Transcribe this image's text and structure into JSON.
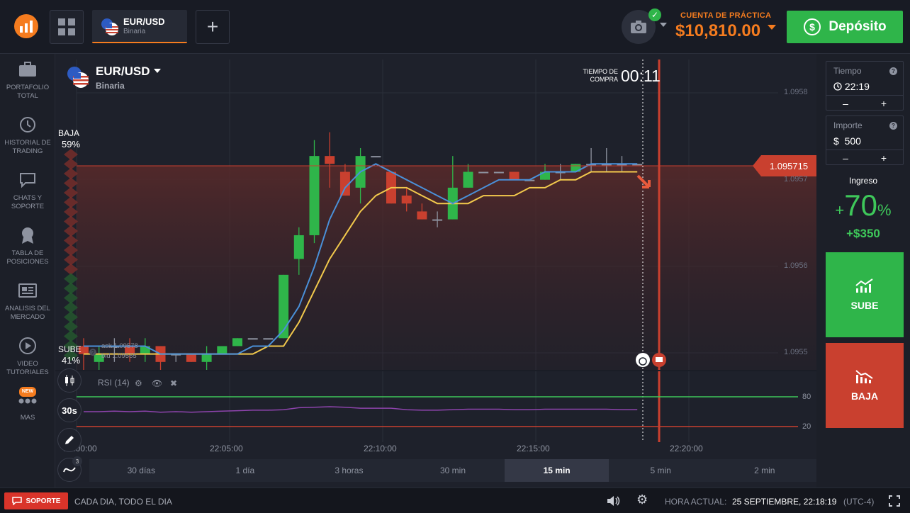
{
  "header": {
    "asset_tab": {
      "name": "EUR/USD",
      "type": "Binaria"
    },
    "account_label": "CUENTA DE PRÁCTICA",
    "balance": "$10,810.00",
    "deposit_label": "Depósito"
  },
  "sidebar": {
    "items": [
      {
        "label1": "PORTAFOLIO",
        "label2": "TOTAL",
        "icon": "briefcase-icon"
      },
      {
        "label1": "HISTORIAL DE",
        "label2": "TRADING",
        "icon": "history-icon"
      },
      {
        "label1": "CHATS Y",
        "label2": "SOPORTE",
        "icon": "chat-icon"
      },
      {
        "label1": "TABLA DE",
        "label2": "POSICIONES",
        "icon": "medal-icon"
      },
      {
        "label1": "ANALISIS DEL",
        "label2": "MERCADO",
        "icon": "news-icon"
      },
      {
        "label1": "VIDEO",
        "label2": "TUTORIALES",
        "icon": "play-icon"
      },
      {
        "label1": "MAS",
        "label2": "",
        "icon": "more-icon",
        "badge": "NEW"
      }
    ]
  },
  "chart": {
    "asset_name": "EUR/USD",
    "asset_type": "Binaria",
    "buy_time_label_1": "TIEMPO DE",
    "buy_time_label_2": "COMPRA",
    "buy_time": "00:11",
    "low_label": "BAJA",
    "low_pct": "59%",
    "high_label": "SUBE",
    "high_pct": "41%",
    "ask": "ask 1.09578",
    "bid": "bid 1.09565",
    "current_price": "1.095715",
    "indicator_label": "RSI (14)",
    "rsi_levels": [
      "80",
      "20"
    ],
    "timeframe_button": "30s",
    "tools_count": "3",
    "periods": [
      "30 días",
      "1 día",
      "3 horas",
      "30 min",
      "15 min",
      "5 min",
      "2 min"
    ],
    "active_period": "15 min",
    "colors": {
      "up": "#2fb54a",
      "down": "#c9402f",
      "ma_fast": "#4a90d9",
      "ma_slow": "#f2c94c",
      "rsi": "#8e44ad"
    }
  },
  "chart_data": {
    "type": "candlestick",
    "x_ticks": [
      "22:00:00",
      "22:05:00",
      "22:10:00",
      "22:15:00",
      "22:20:00"
    ],
    "y_ticks": [
      "1.0958",
      "1.0957",
      "1.0956",
      "1.0955"
    ],
    "ylim": [
      1.09546,
      1.09585
    ],
    "current_price": 1.095715,
    "candles": [
      {
        "o": 1.09549,
        "c": 1.09548,
        "h": 1.0955,
        "l": 1.09546
      },
      {
        "o": 1.09547,
        "c": 1.09548,
        "h": 1.09549,
        "l": 1.09546
      },
      {
        "o": 1.09549,
        "c": 1.09549,
        "h": 1.0955,
        "l": 1.09547
      },
      {
        "o": 1.09549,
        "c": 1.09548,
        "h": 1.0955,
        "l": 1.09547
      },
      {
        "o": 1.09548,
        "c": 1.09549,
        "h": 1.0955,
        "l": 1.09547
      },
      {
        "o": 1.09549,
        "c": 1.09547,
        "h": 1.09549,
        "l": 1.09546
      },
      {
        "o": 1.09548,
        "c": 1.09548,
        "h": 1.09548,
        "l": 1.09547
      },
      {
        "o": 1.09548,
        "c": 1.09547,
        "h": 1.09548,
        "l": 1.09547
      },
      {
        "o": 1.09547,
        "c": 1.09548,
        "h": 1.09549,
        "l": 1.09546
      },
      {
        "o": 1.09548,
        "c": 1.09549,
        "h": 1.09549,
        "l": 1.09548
      },
      {
        "o": 1.09549,
        "c": 1.0955,
        "h": 1.0955,
        "l": 1.09549
      },
      {
        "o": 1.0955,
        "c": 1.0955,
        "h": 1.0955,
        "l": 1.0955
      },
      {
        "o": 1.0955,
        "c": 1.0955,
        "h": 1.0955,
        "l": 1.0955
      },
      {
        "o": 1.0955,
        "c": 1.09558,
        "h": 1.09558,
        "l": 1.0955
      },
      {
        "o": 1.0956,
        "c": 1.09563,
        "h": 1.09564,
        "l": 1.09558
      },
      {
        "o": 1.09563,
        "c": 1.09573,
        "h": 1.09575,
        "l": 1.09562
      },
      {
        "o": 1.09573,
        "c": 1.09572,
        "h": 1.09576,
        "l": 1.09569
      },
      {
        "o": 1.09571,
        "c": 1.09568,
        "h": 1.09572,
        "l": 1.09568
      },
      {
        "o": 1.09569,
        "c": 1.09573,
        "h": 1.09574,
        "l": 1.09567
      },
      {
        "o": 1.09573,
        "c": 1.09573,
        "h": 1.09573,
        "l": 1.09573
      },
      {
        "o": 1.09571,
        "c": 1.09567,
        "h": 1.09571,
        "l": 1.09567
      },
      {
        "o": 1.09568,
        "c": 1.09567,
        "h": 1.09569,
        "l": 1.09566
      },
      {
        "o": 1.09566,
        "c": 1.09565,
        "h": 1.09567,
        "l": 1.09565
      },
      {
        "o": 1.09565,
        "c": 1.09565,
        "h": 1.09566,
        "l": 1.09564
      },
      {
        "o": 1.09565,
        "c": 1.09569,
        "h": 1.09573,
        "l": 1.09565
      },
      {
        "o": 1.09569,
        "c": 1.09571,
        "h": 1.09572,
        "l": 1.09569
      },
      {
        "o": 1.09571,
        "c": 1.09571,
        "h": 1.09571,
        "l": 1.09571
      },
      {
        "o": 1.09571,
        "c": 1.09571,
        "h": 1.09571,
        "l": 1.09571
      },
      {
        "o": 1.09571,
        "c": 1.0957,
        "h": 1.09571,
        "l": 1.0957
      },
      {
        "o": 1.0957,
        "c": 1.0957,
        "h": 1.0957,
        "l": 1.0957
      },
      {
        "o": 1.0957,
        "c": 1.09571,
        "h": 1.09572,
        "l": 1.0957
      },
      {
        "o": 1.09571,
        "c": 1.09571,
        "h": 1.09572,
        "l": 1.0957
      },
      {
        "o": 1.09571,
        "c": 1.09572,
        "h": 1.09572,
        "l": 1.09571
      },
      {
        "o": 1.09572,
        "c": 1.09572,
        "h": 1.09574,
        "l": 1.09571
      },
      {
        "o": 1.09572,
        "c": 1.09572,
        "h": 1.09574,
        "l": 1.09571
      },
      {
        "o": 1.09572,
        "c": 1.09572,
        "h": 1.09573,
        "l": 1.09571
      },
      {
        "o": 1.09572,
        "c": 1.09572,
        "h": 1.09572,
        "l": 1.09572
      }
    ],
    "ma_fast": [
      1.09549,
      1.09549,
      1.09549,
      1.09549,
      1.09549,
      1.09548,
      1.09548,
      1.09548,
      1.09548,
      1.09548,
      1.09548,
      1.09549,
      1.09549,
      1.09551,
      1.09554,
      1.09559,
      1.09565,
      1.09569,
      1.09571,
      1.09572,
      1.09571,
      1.0957,
      1.09569,
      1.09568,
      1.09567,
      1.09568,
      1.09569,
      1.0957,
      1.0957,
      1.0957,
      1.09571,
      1.09571,
      1.09571,
      1.09572,
      1.09572,
      1.09572,
      1.09572
    ],
    "ma_slow": [
      1.09548,
      1.09548,
      1.09548,
      1.09548,
      1.09548,
      1.09548,
      1.09548,
      1.09548,
      1.09548,
      1.09548,
      1.09548,
      1.09548,
      1.09549,
      1.09549,
      1.09552,
      1.09556,
      1.0956,
      1.09563,
      1.09566,
      1.09568,
      1.09569,
      1.09569,
      1.09568,
      1.09567,
      1.09567,
      1.09567,
      1.09568,
      1.09568,
      1.09568,
      1.09569,
      1.09569,
      1.0957,
      1.0957,
      1.09571,
      1.09571,
      1.09571,
      1.09571
    ],
    "rsi": [
      50,
      50,
      51,
      50,
      51,
      49,
      50,
      49,
      50,
      51,
      52,
      53,
      53,
      54,
      58,
      59,
      60,
      59,
      57,
      57,
      57,
      54,
      53,
      53,
      54,
      55,
      55,
      55,
      54,
      54,
      55,
      55,
      55,
      55,
      55,
      54,
      54
    ]
  },
  "trade": {
    "time_label": "Tiempo",
    "time_value": "22:19",
    "amount_label": "Importe",
    "amount_currency": "$",
    "amount_value": "500",
    "minus": "–",
    "plus": "+",
    "income_label": "Ingreso",
    "income_sign": "+",
    "income_pct": "70",
    "income_pct_sign": "%",
    "income_amount": "+$350",
    "up_label": "SUBE",
    "down_label": "BAJA"
  },
  "footer": {
    "support_label": "SOPORTE",
    "support_text": "CADA DIA, TODO EL DIA",
    "clock_label": "HORA ACTUAL:",
    "clock_value": "25 SEPTIEMBRE, 22:18:19",
    "timezone": "(UTC-4)"
  }
}
